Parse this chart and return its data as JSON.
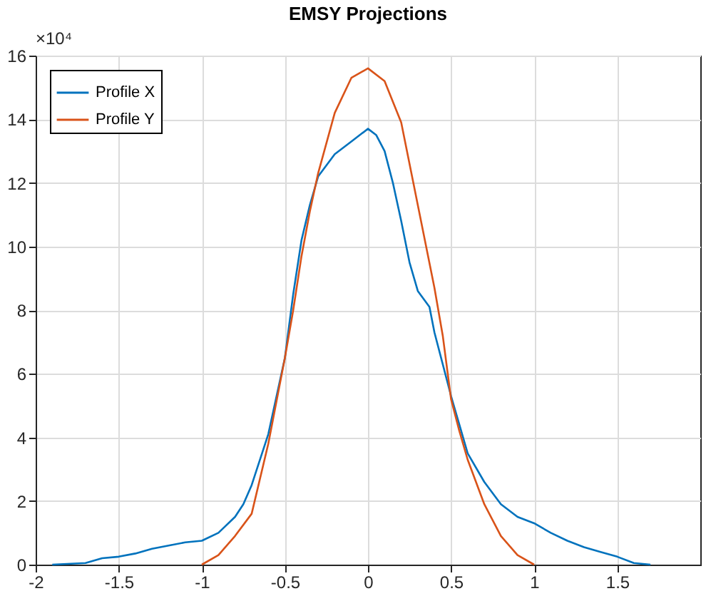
{
  "chart_data": {
    "type": "line",
    "title": "EMSY Projections",
    "annotations": [
      "×10⁴"
    ],
    "xlim": [
      -2,
      2
    ],
    "xticks": [
      -2,
      -1.5,
      -1,
      -0.5,
      0,
      0.5,
      1,
      1.5
    ],
    "ylim": [
      0,
      16
    ],
    "yticks": [
      0,
      2,
      4,
      6,
      8,
      10,
      12,
      14,
      16
    ],
    "grid": true,
    "legend": "top left",
    "line_style": "solid",
    "series": [
      {
        "name": "Profile X",
        "color": "#0072bd",
        "x": [
          -1.9,
          -1.7,
          -1.6,
          -1.5,
          -1.4,
          -1.3,
          -1.2,
          -1.1,
          -1.0,
          -0.9,
          -0.8,
          -0.75,
          -0.7,
          -0.6,
          -0.5,
          -0.45,
          -0.4,
          -0.35,
          -0.3,
          -0.2,
          -0.1,
          -0.05,
          0,
          0.05,
          0.1,
          0.15,
          0.2,
          0.25,
          0.3,
          0.37,
          0.4,
          0.5,
          0.55,
          0.6,
          0.7,
          0.8,
          0.9,
          1.0,
          1.1,
          1.2,
          1.3,
          1.4,
          1.5,
          1.6,
          1.7
        ],
        "values": [
          0,
          0.05,
          0.2,
          0.25,
          0.35,
          0.5,
          0.6,
          0.7,
          0.75,
          1.0,
          1.5,
          1.9,
          2.5,
          4.1,
          6.5,
          8.5,
          10.2,
          11.3,
          12.2,
          12.9,
          13.3,
          13.5,
          13.7,
          13.5,
          13.0,
          12.0,
          10.8,
          9.5,
          8.6,
          8.1,
          7.3,
          5.3,
          4.4,
          3.5,
          2.6,
          1.9,
          1.5,
          1.3,
          1.0,
          0.75,
          0.55,
          0.4,
          0.25,
          0.05,
          0
        ]
      },
      {
        "name": "Profile Y",
        "color": "#d95319",
        "x": [
          -1.0,
          -0.9,
          -0.8,
          -0.7,
          -0.6,
          -0.5,
          -0.45,
          -0.4,
          -0.35,
          -0.3,
          -0.2,
          -0.1,
          0,
          0.1,
          0.2,
          0.3,
          0.4,
          0.45,
          0.5,
          0.55,
          0.6,
          0.7,
          0.8,
          0.9,
          1.0
        ],
        "values": [
          0,
          0.3,
          0.9,
          1.6,
          3.8,
          6.5,
          8.0,
          9.7,
          11.1,
          12.3,
          14.2,
          15.3,
          15.6,
          15.2,
          13.9,
          11.3,
          8.7,
          7.2,
          5.2,
          4.2,
          3.3,
          1.9,
          0.9,
          0.3,
          0
        ]
      }
    ]
  }
}
